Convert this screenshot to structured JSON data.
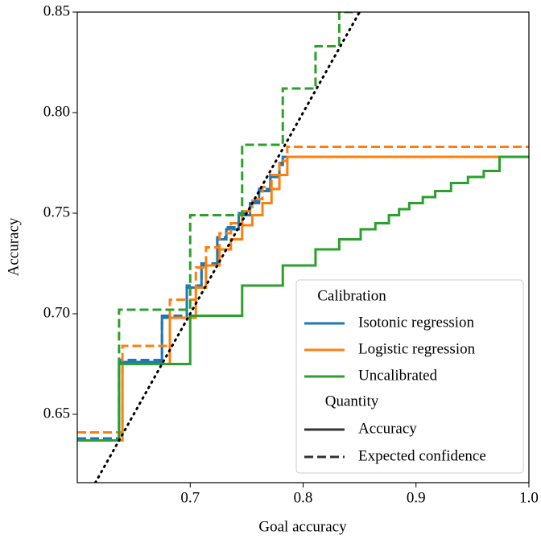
{
  "chart_data": {
    "type": "step",
    "x_label": "Goal accuracy",
    "y_label": "Accuracy",
    "xlim": [
      0.6,
      1.0
    ],
    "ylim": [
      0.616,
      0.85
    ],
    "xticks": [
      0.7,
      0.8,
      0.9,
      {
        "value": 1.0,
        "label": "1.0"
      }
    ],
    "yticks": [
      0.65,
      {
        "value": 0.7,
        "label": "0.70"
      },
      0.75,
      {
        "value": 0.8,
        "label": "0.80"
      },
      0.85
    ],
    "reference_line": {
      "style": "dotted",
      "color": "#000000"
    },
    "legend_title": "Calibration",
    "quantity_title": "Quantity",
    "quantities": [
      {
        "key": "accuracy",
        "name": "Accuracy",
        "dash": "solid"
      },
      {
        "key": "expected_confidence",
        "name": "Expected confidence",
        "dash": "dashed"
      }
    ],
    "legend_position": "lower right",
    "series": [
      {
        "name": "Isotonic regression",
        "color": "#1f77b4",
        "accuracy": {
          "x": [
            0.6,
            0.637,
            0.675,
            0.697,
            0.71,
            0.724,
            0.732,
            0.743,
            0.753,
            0.761,
            0.771,
            0.779,
            0.782,
            1.0
          ],
          "values": [
            0.637,
            0.676,
            0.698,
            0.713,
            0.724,
            0.737,
            0.742,
            0.749,
            0.755,
            0.761,
            0.768,
            0.774,
            0.778,
            0.778
          ]
        },
        "expected_confidence": {
          "x": [
            0.6,
            0.637,
            0.675,
            0.697,
            0.71,
            0.724,
            0.732,
            0.743,
            0.753,
            0.761,
            0.771,
            0.779,
            0.782,
            1.0
          ],
          "values": [
            0.638,
            0.677,
            0.699,
            0.714,
            0.725,
            0.738,
            0.743,
            0.75,
            0.756,
            0.762,
            0.769,
            0.775,
            0.778,
            0.778
          ]
        }
      },
      {
        "name": "Logistic regression",
        "color": "#ff7f0e",
        "accuracy": {
          "x": [
            0.6,
            0.64,
            0.682,
            0.705,
            0.714,
            0.726,
            0.736,
            0.746,
            0.755,
            0.764,
            0.772,
            0.779,
            0.786,
            1.0
          ],
          "values": [
            0.637,
            0.675,
            0.698,
            0.713,
            0.724,
            0.732,
            0.737,
            0.744,
            0.749,
            0.755,
            0.762,
            0.769,
            0.778,
            0.778
          ]
        },
        "expected_confidence": {
          "x": [
            0.6,
            0.64,
            0.682,
            0.705,
            0.714,
            0.726,
            0.736,
            0.746,
            0.755,
            0.764,
            0.772,
            0.779,
            0.786,
            1.0
          ],
          "values": [
            0.641,
            0.684,
            0.707,
            0.723,
            0.733,
            0.74,
            0.745,
            0.751,
            0.757,
            0.763,
            0.769,
            0.776,
            0.783,
            0.783
          ]
        }
      },
      {
        "name": "Uncalibrated",
        "color": "#2ca02c",
        "accuracy": {
          "x": [
            0.6,
            0.637,
            0.7,
            0.746,
            0.782,
            0.811,
            0.832,
            0.851,
            0.864,
            0.876,
            0.885,
            0.894,
            0.906,
            0.917,
            0.931,
            0.946,
            0.96,
            0.974,
            1.0
          ],
          "values": [
            0.637,
            0.675,
            0.699,
            0.714,
            0.724,
            0.732,
            0.737,
            0.742,
            0.745,
            0.749,
            0.752,
            0.755,
            0.758,
            0.761,
            0.765,
            0.768,
            0.771,
            0.778,
            0.778
          ]
        },
        "expected_confidence": {
          "x": [
            0.6,
            0.637,
            0.7,
            0.746,
            0.782,
            0.811,
            0.832,
            0.851
          ],
          "values": [
            0.637,
            0.702,
            0.749,
            0.784,
            0.812,
            0.833,
            0.85,
            0.85
          ]
        }
      }
    ]
  }
}
